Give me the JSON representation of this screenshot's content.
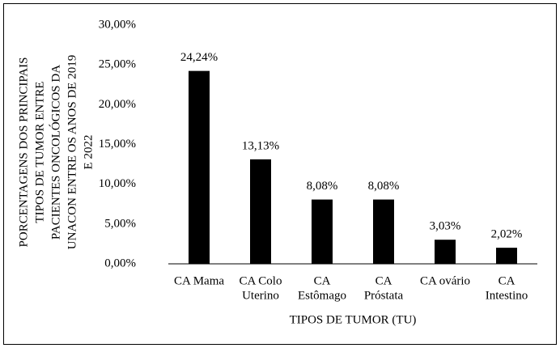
{
  "chart_data": {
    "type": "bar",
    "ylabel": [
      "PORCENTAGENS DOS PRINCIPAIS",
      "TIPOS DE TUMOR ENTRE",
      "PACIENTES ONCOLÓGICOS DA",
      "UNACON ENTRE OS ANOS DE 2019",
      "E 2022"
    ],
    "xlabel": "TIPOS DE TUMOR (TU)",
    "categories": [
      [
        "CA Mama"
      ],
      [
        "CA Colo",
        "Uterino"
      ],
      [
        "CA",
        "Estômago"
      ],
      [
        "CA",
        "Próstata"
      ],
      [
        "CA ovário"
      ],
      [
        "CA",
        "Intestino"
      ]
    ],
    "values": [
      24.24,
      13.13,
      8.08,
      8.08,
      3.03,
      2.02
    ],
    "value_labels": [
      "24,24%",
      "13,13%",
      "8,08%",
      "8,08%",
      "3,03%",
      "2,02%"
    ],
    "color": "#000000",
    "ylim": [
      0,
      30
    ],
    "yticks": [
      {
        "value": 0,
        "label": "0,00%"
      },
      {
        "value": 5,
        "label": "5,00%"
      },
      {
        "value": 10,
        "label": "10,00%"
      },
      {
        "value": 15,
        "label": "15,00%"
      },
      {
        "value": 20,
        "label": "20,00%"
      },
      {
        "value": 25,
        "label": "25,00%"
      },
      {
        "value": 30,
        "label": "30,00%"
      }
    ],
    "grid": false
  }
}
